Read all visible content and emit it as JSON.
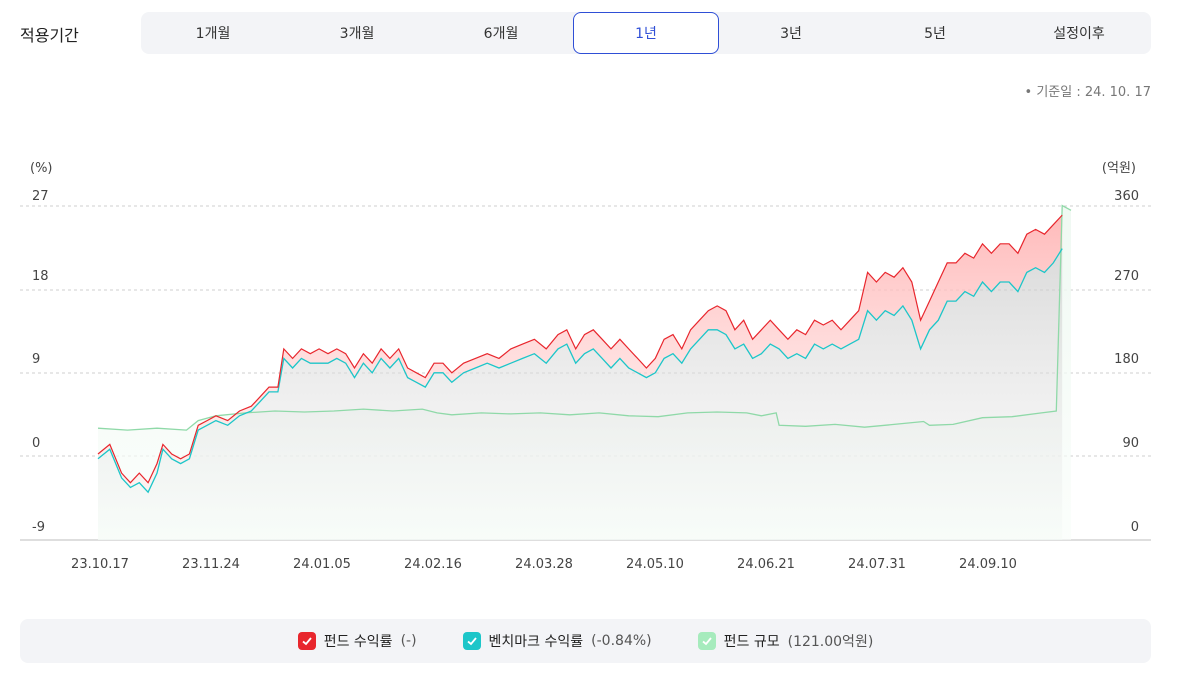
{
  "period": {
    "label": "적용기간",
    "tabs": [
      "1개월",
      "3개월",
      "6개월",
      "1년",
      "3년",
      "5년",
      "설정이후"
    ],
    "active_index": 3
  },
  "base_date": "기준일 : 24. 10. 17",
  "legend": [
    {
      "name": "펀드 수익률",
      "value": "(-)",
      "color": "#e8262d",
      "icon": "check-icon"
    },
    {
      "name": "벤치마크 수익률",
      "value": "(-0.84%)",
      "color": "#1cc6c9",
      "icon": "check-icon"
    },
    {
      "name": "펀드 규모",
      "value": "(121.00억원)",
      "color": "#a6ebbd",
      "icon": "check-icon"
    }
  ],
  "chart_data": {
    "type": "line",
    "y_left": {
      "label": "(%)",
      "ticks": [
        27,
        18,
        9,
        0,
        -9
      ],
      "range": [
        -9,
        27
      ]
    },
    "y_right": {
      "label": "(억원)",
      "ticks": [
        360,
        270,
        180,
        90,
        0
      ],
      "range": [
        0,
        360
      ]
    },
    "x_ticks": [
      "23.10.17",
      "23.11.24",
      "24.01.05",
      "24.02.16",
      "24.03.28",
      "24.05.10",
      "24.06.21",
      "24.07.31",
      "24.09.10"
    ],
    "x_end": "24.10.17",
    "grid": "horizontal-dashed",
    "series": [
      {
        "name": "펀드 수익률",
        "color": "#e8262d",
        "axis": "left",
        "points": [
          [
            0,
            0
          ],
          [
            4,
            1
          ],
          [
            8,
            -2
          ],
          [
            11,
            -3
          ],
          [
            14,
            -2
          ],
          [
            17,
            -3
          ],
          [
            20,
            -1
          ],
          [
            22,
            1
          ],
          [
            25,
            0
          ],
          [
            28,
            -0.5
          ],
          [
            31,
            0
          ],
          [
            34,
            3
          ],
          [
            37,
            3.5
          ],
          [
            40,
            4
          ],
          [
            44,
            3.5
          ],
          [
            48,
            4.5
          ],
          [
            52,
            5
          ],
          [
            55,
            6
          ],
          [
            58,
            7
          ],
          [
            61,
            7
          ],
          [
            63,
            11
          ],
          [
            66,
            10
          ],
          [
            69,
            11
          ],
          [
            72,
            10.5
          ],
          [
            75,
            11
          ],
          [
            78,
            10.5
          ],
          [
            81,
            11
          ],
          [
            84,
            10.5
          ],
          [
            87,
            9
          ],
          [
            90,
            10.5
          ],
          [
            93,
            9.5
          ],
          [
            96,
            11
          ],
          [
            99,
            10
          ],
          [
            102,
            11
          ],
          [
            105,
            9
          ],
          [
            108,
            8.5
          ],
          [
            111,
            8
          ],
          [
            114,
            9.5
          ],
          [
            117,
            9.5
          ],
          [
            120,
            8.5
          ],
          [
            124,
            9.5
          ],
          [
            128,
            10
          ],
          [
            132,
            10.5
          ],
          [
            136,
            10
          ],
          [
            140,
            11
          ],
          [
            144,
            11.5
          ],
          [
            148,
            12
          ],
          [
            152,
            11
          ],
          [
            156,
            12.5
          ],
          [
            159,
            13
          ],
          [
            162,
            11
          ],
          [
            165,
            12.5
          ],
          [
            168,
            13
          ],
          [
            171,
            12
          ],
          [
            174,
            11
          ],
          [
            177,
            12
          ],
          [
            180,
            11
          ],
          [
            183,
            10
          ],
          [
            186,
            9
          ],
          [
            189,
            10
          ],
          [
            192,
            12
          ],
          [
            195,
            12.5
          ],
          [
            198,
            11
          ],
          [
            201,
            13
          ],
          [
            204,
            14
          ],
          [
            207,
            15
          ],
          [
            210,
            15.5
          ],
          [
            213,
            15
          ],
          [
            216,
            13
          ],
          [
            219,
            14
          ],
          [
            222,
            12
          ],
          [
            225,
            13
          ],
          [
            228,
            14
          ],
          [
            231,
            13
          ],
          [
            234,
            12
          ],
          [
            237,
            13
          ],
          [
            240,
            12.5
          ],
          [
            243,
            14
          ],
          [
            246,
            13.5
          ],
          [
            249,
            14
          ],
          [
            252,
            13
          ],
          [
            255,
            14
          ],
          [
            258,
            15
          ],
          [
            261,
            19
          ],
          [
            264,
            18
          ],
          [
            267,
            19
          ],
          [
            270,
            18.5
          ],
          [
            273,
            19.5
          ],
          [
            276,
            18
          ],
          [
            279,
            14
          ],
          [
            282,
            16
          ],
          [
            285,
            18
          ],
          [
            288,
            20
          ],
          [
            291,
            20
          ],
          [
            294,
            21
          ],
          [
            297,
            20.5
          ],
          [
            300,
            22
          ],
          [
            303,
            21
          ],
          [
            306,
            22
          ],
          [
            309,
            22
          ],
          [
            312,
            21
          ],
          [
            315,
            23
          ],
          [
            318,
            23.5
          ],
          [
            321,
            23
          ],
          [
            324,
            24
          ],
          [
            327,
            25
          ]
        ]
      },
      {
        "name": "벤치마크 수익률",
        "color": "#1cc6c9",
        "axis": "left",
        "points": [
          [
            0,
            -0.5
          ],
          [
            4,
            0.5
          ],
          [
            8,
            -2.5
          ],
          [
            11,
            -3.5
          ],
          [
            14,
            -3
          ],
          [
            17,
            -4
          ],
          [
            20,
            -2
          ],
          [
            22,
            0.5
          ],
          [
            25,
            -0.5
          ],
          [
            28,
            -1
          ],
          [
            31,
            -0.5
          ],
          [
            34,
            2.5
          ],
          [
            37,
            3
          ],
          [
            40,
            3.5
          ],
          [
            44,
            3
          ],
          [
            48,
            4
          ],
          [
            52,
            4.5
          ],
          [
            55,
            5.5
          ],
          [
            58,
            6.5
          ],
          [
            61,
            6.5
          ],
          [
            63,
            10
          ],
          [
            66,
            9
          ],
          [
            69,
            10
          ],
          [
            72,
            9.5
          ],
          [
            75,
            9.5
          ],
          [
            78,
            9.5
          ],
          [
            81,
            10
          ],
          [
            84,
            9.5
          ],
          [
            87,
            8
          ],
          [
            90,
            9.5
          ],
          [
            93,
            8.5
          ],
          [
            96,
            10
          ],
          [
            99,
            9
          ],
          [
            102,
            10
          ],
          [
            105,
            8
          ],
          [
            108,
            7.5
          ],
          [
            111,
            7
          ],
          [
            114,
            8.5
          ],
          [
            117,
            8.5
          ],
          [
            120,
            7.5
          ],
          [
            124,
            8.5
          ],
          [
            128,
            9
          ],
          [
            132,
            9.5
          ],
          [
            136,
            9
          ],
          [
            140,
            9.5
          ],
          [
            144,
            10
          ],
          [
            148,
            10.5
          ],
          [
            152,
            9.5
          ],
          [
            156,
            11
          ],
          [
            159,
            11.5
          ],
          [
            162,
            9.5
          ],
          [
            165,
            10.5
          ],
          [
            168,
            11
          ],
          [
            171,
            10
          ],
          [
            174,
            9
          ],
          [
            177,
            10
          ],
          [
            180,
            9
          ],
          [
            183,
            8.5
          ],
          [
            186,
            8
          ],
          [
            189,
            8.5
          ],
          [
            192,
            10
          ],
          [
            195,
            10.5
          ],
          [
            198,
            9.5
          ],
          [
            201,
            11
          ],
          [
            204,
            12
          ],
          [
            207,
            13
          ],
          [
            210,
            13
          ],
          [
            213,
            12.5
          ],
          [
            216,
            11
          ],
          [
            219,
            11.5
          ],
          [
            222,
            10
          ],
          [
            225,
            10.5
          ],
          [
            228,
            11.5
          ],
          [
            231,
            11
          ],
          [
            234,
            10
          ],
          [
            237,
            10.5
          ],
          [
            240,
            10
          ],
          [
            243,
            11.5
          ],
          [
            246,
            11
          ],
          [
            249,
            11.5
          ],
          [
            252,
            11
          ],
          [
            255,
            11.5
          ],
          [
            258,
            12
          ],
          [
            261,
            15
          ],
          [
            264,
            14
          ],
          [
            267,
            15
          ],
          [
            270,
            14.5
          ],
          [
            273,
            15.5
          ],
          [
            276,
            14
          ],
          [
            279,
            11
          ],
          [
            282,
            13
          ],
          [
            285,
            14
          ],
          [
            288,
            16
          ],
          [
            291,
            16
          ],
          [
            294,
            17
          ],
          [
            297,
            16.5
          ],
          [
            300,
            18
          ],
          [
            303,
            17
          ],
          [
            306,
            18
          ],
          [
            309,
            18
          ],
          [
            312,
            17
          ],
          [
            315,
            19
          ],
          [
            318,
            19.5
          ],
          [
            321,
            19
          ],
          [
            324,
            20
          ],
          [
            327,
            21.5
          ]
        ]
      },
      {
        "name": "펀드 규모",
        "color": "#8fd9a8",
        "axis": "right",
        "points": [
          [
            0,
            117
          ],
          [
            10,
            115
          ],
          [
            20,
            117
          ],
          [
            30,
            115
          ],
          [
            34,
            125
          ],
          [
            40,
            130
          ],
          [
            50,
            133
          ],
          [
            60,
            135
          ],
          [
            70,
            134
          ],
          [
            80,
            135
          ],
          [
            90,
            137
          ],
          [
            100,
            135
          ],
          [
            110,
            137
          ],
          [
            115,
            133
          ],
          [
            120,
            131
          ],
          [
            130,
            133
          ],
          [
            140,
            132
          ],
          [
            150,
            133
          ],
          [
            160,
            131
          ],
          [
            170,
            133
          ],
          [
            180,
            130
          ],
          [
            190,
            129
          ],
          [
            200,
            133
          ],
          [
            210,
            134
          ],
          [
            220,
            133
          ],
          [
            225,
            130
          ],
          [
            230,
            133
          ],
          [
            231,
            120
          ],
          [
            240,
            119
          ],
          [
            250,
            121
          ],
          [
            260,
            118
          ],
          [
            270,
            121
          ],
          [
            280,
            124
          ],
          [
            282,
            120
          ],
          [
            290,
            121
          ],
          [
            300,
            128
          ],
          [
            310,
            129
          ],
          [
            320,
            133
          ],
          [
            325,
            135
          ],
          [
            327,
            350
          ],
          [
            330,
            345
          ]
        ]
      }
    ]
  }
}
